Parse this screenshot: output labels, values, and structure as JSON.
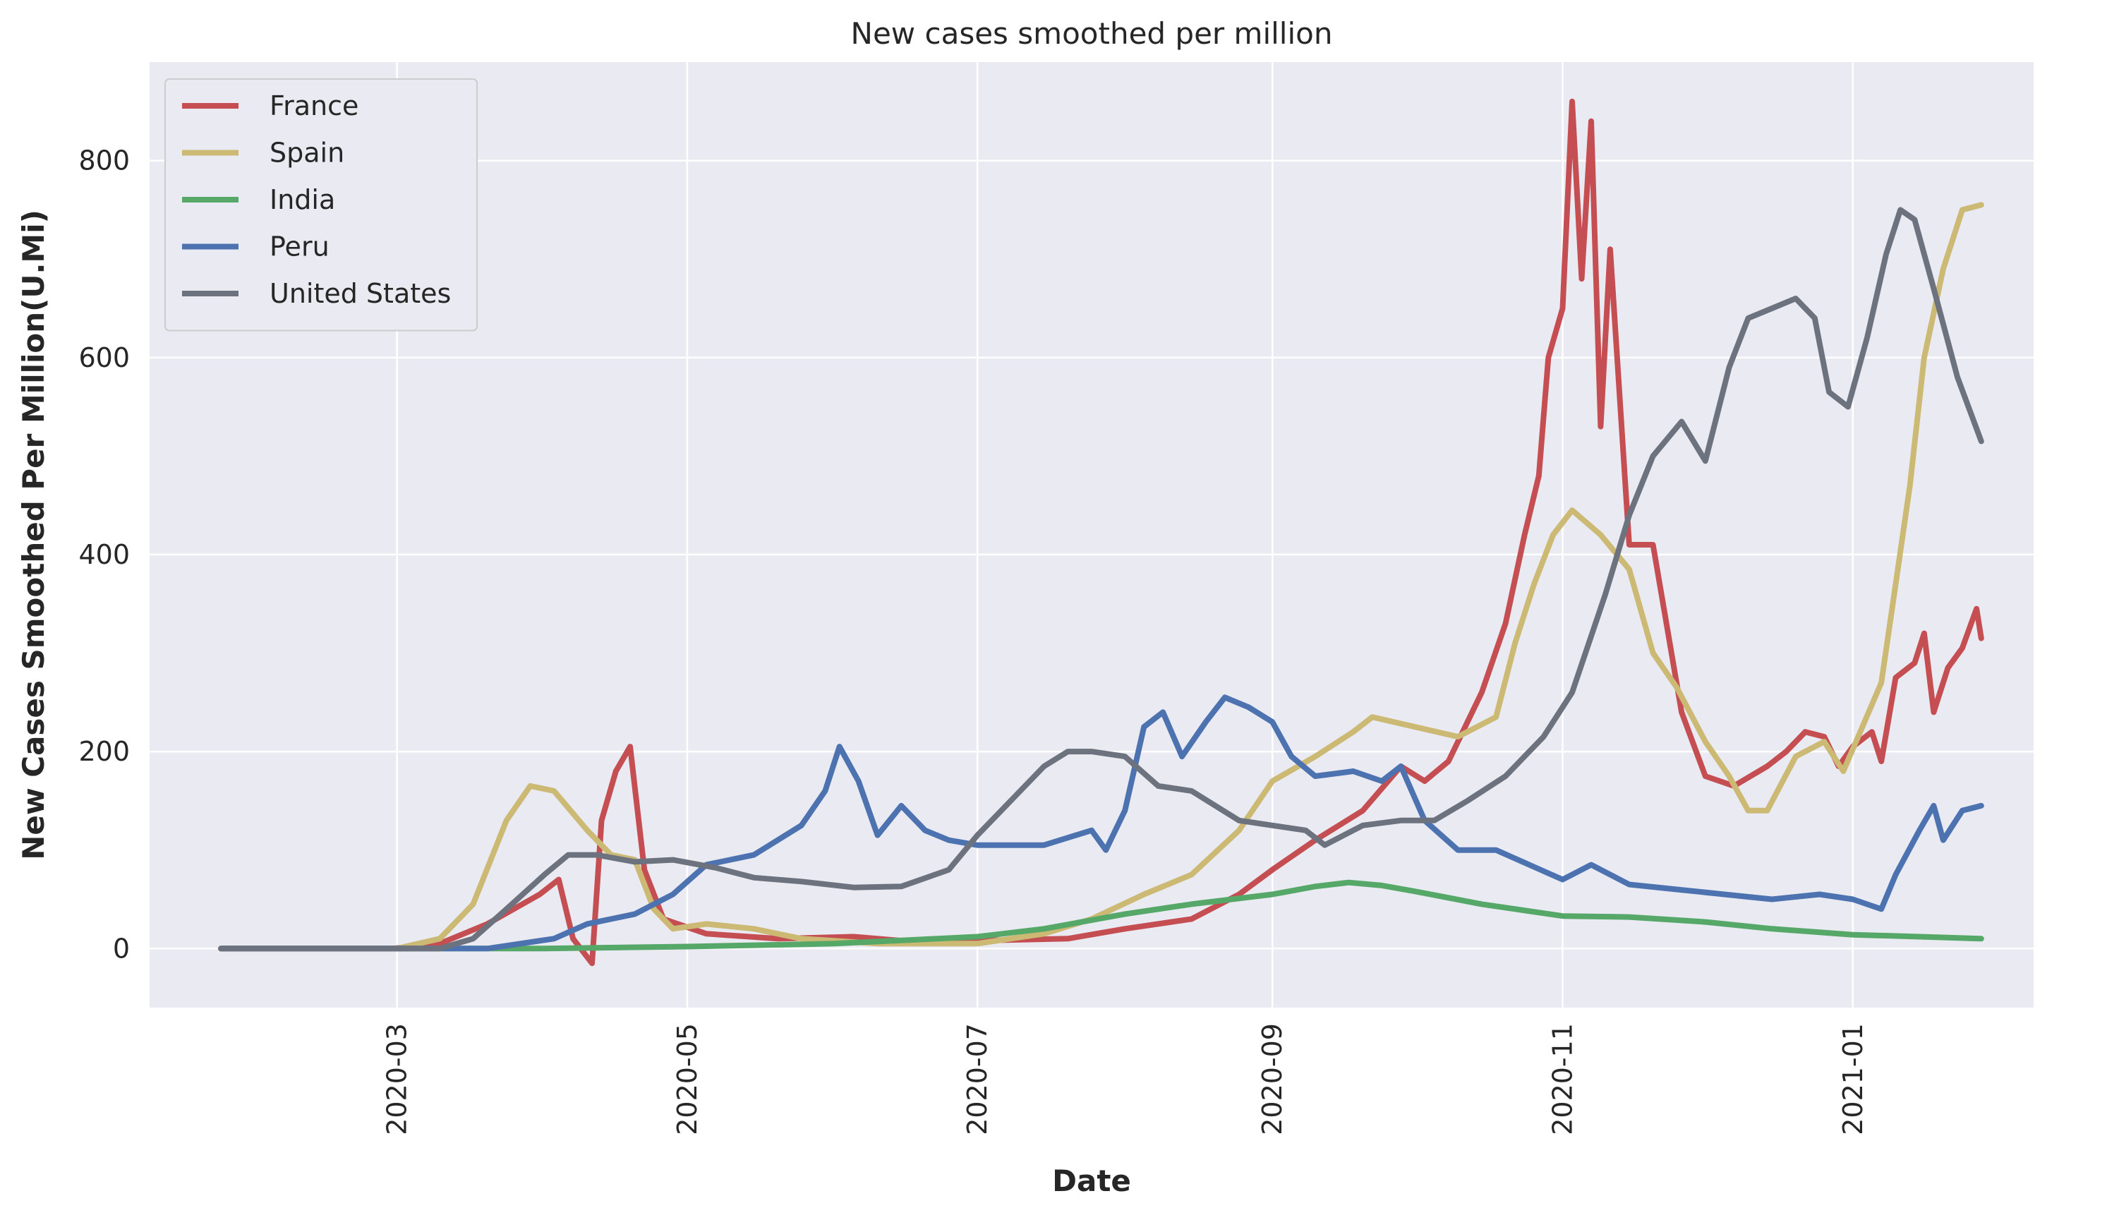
{
  "chart_data": {
    "type": "line",
    "title": "New cases smoothed per million",
    "xlabel": "Date",
    "ylabel": "New Cases Smoothed Per Million(U.Mi)",
    "x_axis": {
      "range": [
        "2020-01-09",
        "2021-02-08"
      ],
      "ticks": [
        {
          "date": "2020-03-01",
          "label": "2020-03"
        },
        {
          "date": "2020-05-01",
          "label": "2020-05"
        },
        {
          "date": "2020-07-01",
          "label": "2020-07"
        },
        {
          "date": "2020-09-01",
          "label": "2020-09"
        },
        {
          "date": "2020-11-01",
          "label": "2020-11"
        },
        {
          "date": "2021-01-01",
          "label": "2021-01"
        }
      ]
    },
    "y_axis": {
      "range": [
        -60,
        900
      ],
      "ticks": [
        0,
        200,
        400,
        600,
        800
      ]
    },
    "grid": true,
    "legend_position": "top-left",
    "series": [
      {
        "name": "France",
        "color": "#c44e52",
        "points": [
          [
            "2020-01-24",
            0
          ],
          [
            "2020-02-29",
            0
          ],
          [
            "2020-03-10",
            5
          ],
          [
            "2020-03-20",
            25
          ],
          [
            "2020-03-31",
            55
          ],
          [
            "2020-04-04",
            70
          ],
          [
            "2020-04-07",
            10
          ],
          [
            "2020-04-11",
            -15
          ],
          [
            "2020-04-13",
            130
          ],
          [
            "2020-04-16",
            180
          ],
          [
            "2020-04-19",
            205
          ],
          [
            "2020-04-22",
            80
          ],
          [
            "2020-04-26",
            30
          ],
          [
            "2020-05-05",
            15
          ],
          [
            "2020-05-20",
            10
          ],
          [
            "2020-06-05",
            12
          ],
          [
            "2020-06-15",
            8
          ],
          [
            "2020-07-01",
            8
          ],
          [
            "2020-07-20",
            10
          ],
          [
            "2020-08-01",
            20
          ],
          [
            "2020-08-15",
            30
          ],
          [
            "2020-08-25",
            55
          ],
          [
            "2020-09-01",
            80
          ],
          [
            "2020-09-10",
            110
          ],
          [
            "2020-09-20",
            140
          ],
          [
            "2020-09-28",
            185
          ],
          [
            "2020-10-03",
            170
          ],
          [
            "2020-10-08",
            190
          ],
          [
            "2020-10-15",
            260
          ],
          [
            "2020-10-20",
            330
          ],
          [
            "2020-10-24",
            420
          ],
          [
            "2020-10-27",
            480
          ],
          [
            "2020-10-29",
            600
          ],
          [
            "2020-11-01",
            650
          ],
          [
            "2020-11-03",
            860
          ],
          [
            "2020-11-05",
            680
          ],
          [
            "2020-11-07",
            840
          ],
          [
            "2020-11-09",
            530
          ],
          [
            "2020-11-11",
            710
          ],
          [
            "2020-11-15",
            410
          ],
          [
            "2020-11-20",
            410
          ],
          [
            "2020-11-26",
            240
          ],
          [
            "2020-12-01",
            175
          ],
          [
            "2020-12-07",
            165
          ],
          [
            "2020-12-14",
            185
          ],
          [
            "2020-12-18",
            200
          ],
          [
            "2020-12-22",
            220
          ],
          [
            "2020-12-26",
            215
          ],
          [
            "2020-12-29",
            185
          ],
          [
            "2021-01-01",
            205
          ],
          [
            "2021-01-05",
            220
          ],
          [
            "2021-01-07",
            190
          ],
          [
            "2021-01-10",
            275
          ],
          [
            "2021-01-14",
            290
          ],
          [
            "2021-01-16",
            320
          ],
          [
            "2021-01-18",
            240
          ],
          [
            "2021-01-21",
            285
          ],
          [
            "2021-01-24",
            305
          ],
          [
            "2021-01-27",
            345
          ],
          [
            "2021-01-28",
            315
          ]
        ]
      },
      {
        "name": "Spain",
        "color": "#ccb974",
        "points": [
          [
            "2020-01-24",
            0
          ],
          [
            "2020-03-01",
            0
          ],
          [
            "2020-03-10",
            10
          ],
          [
            "2020-03-17",
            45
          ],
          [
            "2020-03-24",
            130
          ],
          [
            "2020-03-29",
            165
          ],
          [
            "2020-04-03",
            160
          ],
          [
            "2020-04-10",
            120
          ],
          [
            "2020-04-15",
            95
          ],
          [
            "2020-04-20",
            90
          ],
          [
            "2020-04-24",
            40
          ],
          [
            "2020-04-28",
            20
          ],
          [
            "2020-05-05",
            25
          ],
          [
            "2020-05-15",
            20
          ],
          [
            "2020-05-25",
            10
          ],
          [
            "2020-06-10",
            5
          ],
          [
            "2020-07-01",
            5
          ],
          [
            "2020-07-15",
            15
          ],
          [
            "2020-07-25",
            30
          ],
          [
            "2020-08-05",
            55
          ],
          [
            "2020-08-15",
            75
          ],
          [
            "2020-08-25",
            120
          ],
          [
            "2020-09-01",
            170
          ],
          [
            "2020-09-10",
            195
          ],
          [
            "2020-09-18",
            220
          ],
          [
            "2020-09-22",
            235
          ],
          [
            "2020-10-01",
            225
          ],
          [
            "2020-10-10",
            215
          ],
          [
            "2020-10-18",
            235
          ],
          [
            "2020-10-22",
            310
          ],
          [
            "2020-10-26",
            370
          ],
          [
            "2020-10-30",
            420
          ],
          [
            "2020-11-03",
            445
          ],
          [
            "2020-11-09",
            420
          ],
          [
            "2020-11-15",
            385
          ],
          [
            "2020-11-20",
            300
          ],
          [
            "2020-11-25",
            265
          ],
          [
            "2020-12-01",
            210
          ],
          [
            "2020-12-06",
            175
          ],
          [
            "2020-12-10",
            140
          ],
          [
            "2020-12-14",
            140
          ],
          [
            "2020-12-20",
            195
          ],
          [
            "2020-12-26",
            210
          ],
          [
            "2020-12-30",
            180
          ],
          [
            "2021-01-03",
            225
          ],
          [
            "2021-01-07",
            270
          ],
          [
            "2021-01-10",
            370
          ],
          [
            "2021-01-13",
            470
          ],
          [
            "2021-01-16",
            600
          ],
          [
            "2021-01-20",
            690
          ],
          [
            "2021-01-24",
            750
          ],
          [
            "2021-01-28",
            755
          ]
        ]
      },
      {
        "name": "India",
        "color": "#55a868",
        "points": [
          [
            "2020-01-24",
            0
          ],
          [
            "2020-04-01",
            0
          ],
          [
            "2020-05-01",
            2
          ],
          [
            "2020-06-01",
            5
          ],
          [
            "2020-07-01",
            12
          ],
          [
            "2020-07-15",
            20
          ],
          [
            "2020-08-01",
            35
          ],
          [
            "2020-08-15",
            45
          ],
          [
            "2020-09-01",
            55
          ],
          [
            "2020-09-10",
            63
          ],
          [
            "2020-09-17",
            67
          ],
          [
            "2020-09-24",
            64
          ],
          [
            "2020-10-01",
            58
          ],
          [
            "2020-10-15",
            45
          ],
          [
            "2020-11-01",
            33
          ],
          [
            "2020-11-15",
            32
          ],
          [
            "2020-12-01",
            27
          ],
          [
            "2020-12-15",
            20
          ],
          [
            "2021-01-01",
            14
          ],
          [
            "2021-01-15",
            12
          ],
          [
            "2021-01-28",
            10
          ]
        ]
      },
      {
        "name": "Peru",
        "color": "#4c72b0",
        "points": [
          [
            "2020-01-24",
            0
          ],
          [
            "2020-03-20",
            0
          ],
          [
            "2020-04-03",
            10
          ],
          [
            "2020-04-10",
            25
          ],
          [
            "2020-04-20",
            35
          ],
          [
            "2020-04-28",
            55
          ],
          [
            "2020-05-05",
            85
          ],
          [
            "2020-05-15",
            95
          ],
          [
            "2020-05-25",
            125
          ],
          [
            "2020-05-30",
            160
          ],
          [
            "2020-06-02",
            205
          ],
          [
            "2020-06-06",
            170
          ],
          [
            "2020-06-10",
            115
          ],
          [
            "2020-06-15",
            145
          ],
          [
            "2020-06-20",
            120
          ],
          [
            "2020-06-25",
            110
          ],
          [
            "2020-07-01",
            105
          ],
          [
            "2020-07-15",
            105
          ],
          [
            "2020-07-25",
            120
          ],
          [
            "2020-07-28",
            100
          ],
          [
            "2020-08-01",
            140
          ],
          [
            "2020-08-05",
            225
          ],
          [
            "2020-08-09",
            240
          ],
          [
            "2020-08-13",
            195
          ],
          [
            "2020-08-18",
            230
          ],
          [
            "2020-08-22",
            255
          ],
          [
            "2020-08-27",
            245
          ],
          [
            "2020-09-01",
            230
          ],
          [
            "2020-09-05",
            195
          ],
          [
            "2020-09-10",
            175
          ],
          [
            "2020-09-18",
            180
          ],
          [
            "2020-09-24",
            170
          ],
          [
            "2020-09-28",
            185
          ],
          [
            "2020-10-03",
            130
          ],
          [
            "2020-10-10",
            100
          ],
          [
            "2020-10-18",
            100
          ],
          [
            "2020-10-25",
            85
          ],
          [
            "2020-11-01",
            70
          ],
          [
            "2020-11-07",
            85
          ],
          [
            "2020-11-15",
            65
          ],
          [
            "2020-11-25",
            60
          ],
          [
            "2020-12-05",
            55
          ],
          [
            "2020-12-15",
            50
          ],
          [
            "2020-12-25",
            55
          ],
          [
            "2021-01-01",
            50
          ],
          [
            "2021-01-07",
            40
          ],
          [
            "2021-01-10",
            75
          ],
          [
            "2021-01-15",
            120
          ],
          [
            "2021-01-18",
            145
          ],
          [
            "2021-01-20",
            110
          ],
          [
            "2021-01-24",
            140
          ],
          [
            "2021-01-28",
            145
          ]
        ]
      },
      {
        "name": "United States",
        "color": "#6d737e",
        "points": [
          [
            "2020-01-24",
            0
          ],
          [
            "2020-03-10",
            0
          ],
          [
            "2020-03-17",
            10
          ],
          [
            "2020-03-24",
            40
          ],
          [
            "2020-04-01",
            75
          ],
          [
            "2020-04-06",
            95
          ],
          [
            "2020-04-12",
            95
          ],
          [
            "2020-04-20",
            88
          ],
          [
            "2020-04-28",
            90
          ],
          [
            "2020-05-07",
            82
          ],
          [
            "2020-05-15",
            72
          ],
          [
            "2020-05-25",
            68
          ],
          [
            "2020-06-05",
            62
          ],
          [
            "2020-06-15",
            63
          ],
          [
            "2020-06-25",
            80
          ],
          [
            "2020-07-01",
            115
          ],
          [
            "2020-07-08",
            150
          ],
          [
            "2020-07-15",
            185
          ],
          [
            "2020-07-20",
            200
          ],
          [
            "2020-07-25",
            200
          ],
          [
            "2020-08-01",
            195
          ],
          [
            "2020-08-08",
            165
          ],
          [
            "2020-08-15",
            160
          ],
          [
            "2020-08-25",
            130
          ],
          [
            "2020-09-01",
            125
          ],
          [
            "2020-09-08",
            120
          ],
          [
            "2020-09-12",
            105
          ],
          [
            "2020-09-20",
            125
          ],
          [
            "2020-09-28",
            130
          ],
          [
            "2020-10-05",
            130
          ],
          [
            "2020-10-12",
            150
          ],
          [
            "2020-10-20",
            175
          ],
          [
            "2020-10-28",
            215
          ],
          [
            "2020-11-03",
            260
          ],
          [
            "2020-11-10",
            360
          ],
          [
            "2020-11-15",
            440
          ],
          [
            "2020-11-20",
            500
          ],
          [
            "2020-11-26",
            535
          ],
          [
            "2020-12-01",
            495
          ],
          [
            "2020-12-06",
            590
          ],
          [
            "2020-12-10",
            640
          ],
          [
            "2020-12-15",
            650
          ],
          [
            "2020-12-20",
            660
          ],
          [
            "2020-12-24",
            640
          ],
          [
            "2020-12-27",
            565
          ],
          [
            "2020-12-31",
            550
          ],
          [
            "2021-01-04",
            620
          ],
          [
            "2021-01-08",
            705
          ],
          [
            "2021-01-11",
            750
          ],
          [
            "2021-01-14",
            740
          ],
          [
            "2021-01-18",
            670
          ],
          [
            "2021-01-23",
            580
          ],
          [
            "2021-01-28",
            515
          ]
        ]
      }
    ]
  }
}
